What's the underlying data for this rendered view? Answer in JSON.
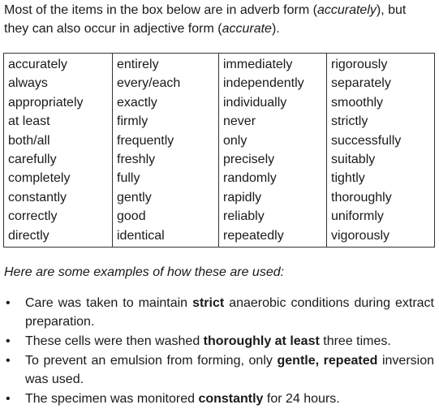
{
  "intro": {
    "part1": "Most of the items in the box below are in adverb form (",
    "adverb_example": "accurately",
    "part2": "), but they can also occur in adjective form (",
    "adjective_example": "accurate",
    "part3": ")."
  },
  "table": {
    "rows": [
      [
        "accurately",
        "entirely",
        "immediately",
        "rigorously"
      ],
      [
        "always",
        "every/each",
        "independently",
        "separately"
      ],
      [
        "appropriately",
        "exactly",
        "individually",
        "smoothly"
      ],
      [
        "at least",
        "firmly",
        "never",
        "strictly"
      ],
      [
        "both/all",
        "frequently",
        "only",
        "successfully"
      ],
      [
        "carefully",
        "freshly",
        "precisely",
        "suitably"
      ],
      [
        "completely",
        "fully",
        "randomly",
        "tightly"
      ],
      [
        "constantly",
        "gently",
        "rapidly",
        "thoroughly"
      ],
      [
        "correctly",
        "good",
        "reliably",
        "uniformly"
      ],
      [
        "directly",
        "identical",
        "repeatedly",
        "vigorously"
      ]
    ]
  },
  "examples_heading": "Here are some examples of how these are used:",
  "examples": [
    {
      "bullet": "•",
      "before": "Care was taken to maintain ",
      "bold": "strict",
      "after": " anaerobic conditions during extract preparation."
    },
    {
      "bullet": "•",
      "before": "These cells were then washed ",
      "bold": "thoroughly at least",
      "after": " three times."
    },
    {
      "bullet": "•",
      "before": "To prevent an emulsion from forming, only ",
      "bold": "gentle, repeated",
      "after": " inversion was used."
    },
    {
      "bullet": "•",
      "before": "The specimen was monitored ",
      "bold": "constantly",
      "after": " for 24 hours."
    }
  ]
}
